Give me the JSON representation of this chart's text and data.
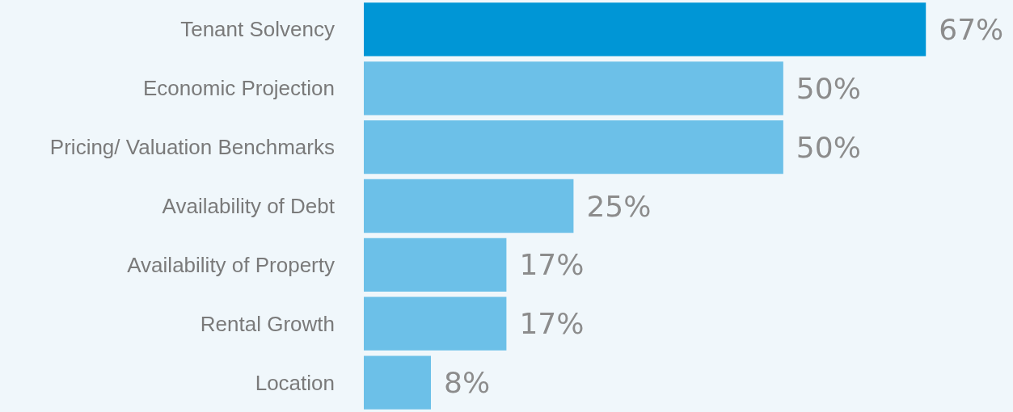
{
  "chart_data": {
    "type": "bar",
    "orientation": "horizontal",
    "categories": [
      "Tenant Solvency",
      "Economic Projection",
      "Pricing/ Valuation Benchmarks",
      "Availability of Debt",
      "Availability of Property",
      "Rental Growth",
      "Location"
    ],
    "values": [
      67,
      50,
      50,
      25,
      17,
      17,
      8
    ],
    "colors": [
      "#0096d6",
      "#6cc0e8",
      "#6cc0e8",
      "#6cc0e8",
      "#6cc0e8",
      "#6cc0e8",
      "#6cc0e8"
    ],
    "value_labels": [
      "67%",
      "50%",
      "50%",
      "25%",
      "17%",
      "17%",
      "8%"
    ],
    "grid": false
  }
}
